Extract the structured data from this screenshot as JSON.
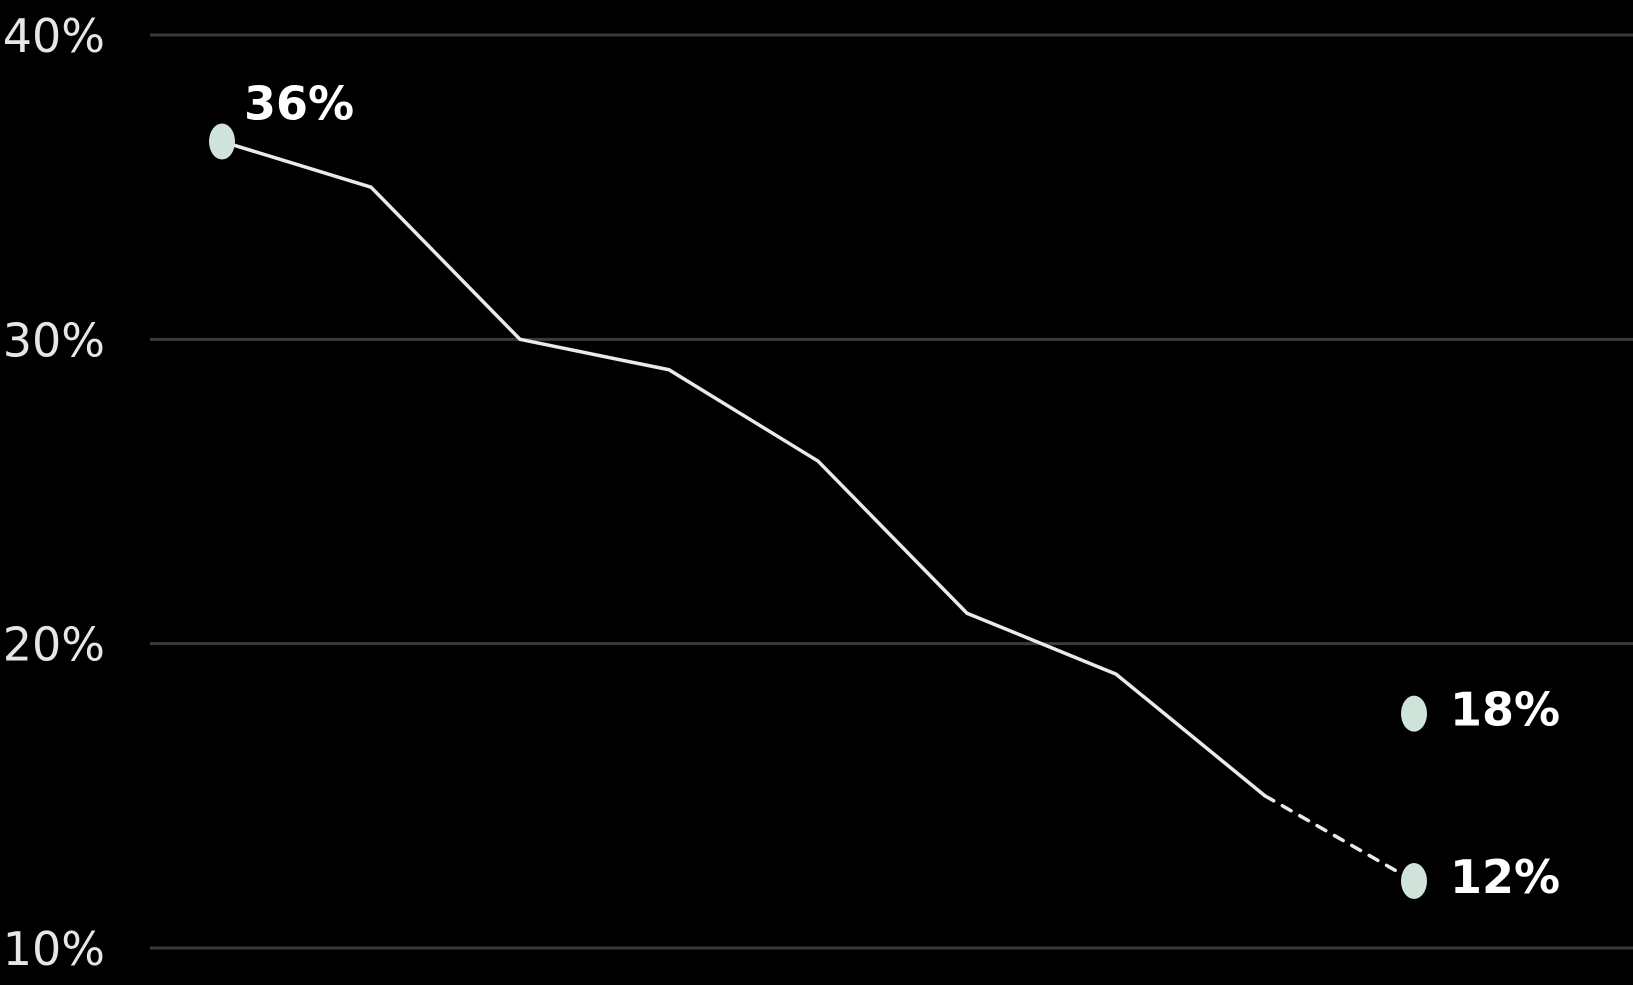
{
  "colors": {
    "background": "#000000",
    "gridline": "#3a3a3a",
    "line": "#e8ece8",
    "marker": "#cfe3db",
    "text": "#ffffff"
  },
  "chart_data": {
    "type": "line",
    "title": "",
    "xlabel": "",
    "ylabel": "",
    "ylim": [
      10,
      40
    ],
    "yticks": [
      40,
      30,
      20,
      10
    ],
    "ytick_labels": [
      "40%",
      "30%",
      "20%",
      "10%"
    ],
    "grid": true,
    "x": [
      0,
      1,
      2,
      3,
      4,
      5,
      6,
      7,
      8
    ],
    "series": [
      {
        "style": "solid",
        "values": [
          36.5,
          35,
          30,
          29,
          26,
          21,
          19,
          15,
          null
        ]
      },
      {
        "style": "dashed",
        "values": [
          null,
          null,
          null,
          null,
          null,
          null,
          null,
          15,
          12.2
        ]
      }
    ],
    "points": [
      {
        "x": 0,
        "y": 36.5,
        "label": "36%"
      },
      {
        "x": 8,
        "y": 17.7,
        "label": "18%"
      },
      {
        "x": 8,
        "y": 12.2,
        "label": "12%"
      }
    ]
  }
}
